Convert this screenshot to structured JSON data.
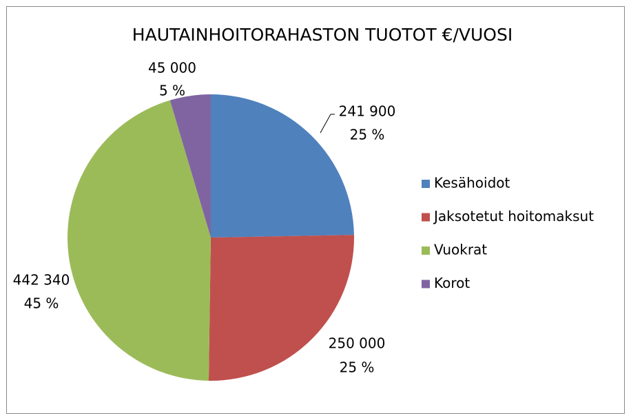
{
  "chart_data": {
    "type": "pie",
    "title": "HAUTAINHOITORAHASTON TUOTOT €/VUOSI",
    "categories": [
      "Kesähoidot",
      "Jaksotetut hoitomaksut",
      "Vuokrat",
      "Korot"
    ],
    "values": [
      241900,
      250000,
      442340,
      45000
    ],
    "value_labels": [
      "241 900",
      "250 000",
      "442 340",
      "45 000"
    ],
    "percent_labels": [
      "25 %",
      "25 %",
      "45 %",
      "5 %"
    ],
    "colors": [
      "#4f81bd",
      "#c0504d",
      "#9bbb59",
      "#8064a2"
    ],
    "legend": "right"
  }
}
